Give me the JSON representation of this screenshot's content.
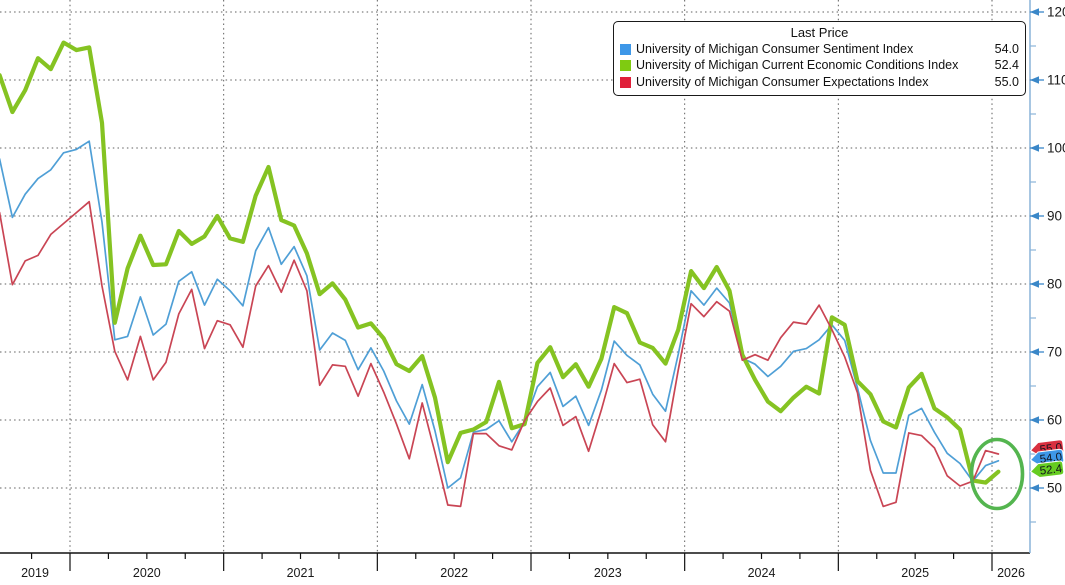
{
  "chart_data": {
    "type": "line",
    "title": "",
    "legend": {
      "title": "Last Price",
      "position": "top-right"
    },
    "x_axis": {
      "year_labels": [
        "2019",
        "2020",
        "2021",
        "2022",
        "2023",
        "2024",
        "2025",
        "2026"
      ],
      "start_month": "2019-07",
      "end_month": "2026-01",
      "minor_tick_interval_months": 3
    },
    "y_axis": {
      "side": "right",
      "ticks": [
        50,
        60,
        70,
        80,
        90,
        100,
        110,
        120
      ],
      "minor_ticks": [
        45,
        55,
        65,
        75,
        85,
        95,
        105,
        115
      ],
      "range": [
        40,
        122
      ]
    },
    "grid": "dotted",
    "months": [
      "2019-07",
      "2019-08",
      "2019-09",
      "2019-10",
      "2019-11",
      "2019-12",
      "2020-01",
      "2020-02",
      "2020-03",
      "2020-04",
      "2020-05",
      "2020-06",
      "2020-07",
      "2020-08",
      "2020-09",
      "2020-10",
      "2020-11",
      "2020-12",
      "2021-01",
      "2021-02",
      "2021-03",
      "2021-04",
      "2021-05",
      "2021-06",
      "2021-07",
      "2021-08",
      "2021-09",
      "2021-10",
      "2021-11",
      "2021-12",
      "2022-01",
      "2022-02",
      "2022-03",
      "2022-04",
      "2022-05",
      "2022-06",
      "2022-07",
      "2022-08",
      "2022-09",
      "2022-10",
      "2022-11",
      "2022-12",
      "2023-01",
      "2023-02",
      "2023-03",
      "2023-04",
      "2023-05",
      "2023-06",
      "2023-07",
      "2023-08",
      "2023-09",
      "2023-10",
      "2023-11",
      "2023-12",
      "2024-01",
      "2024-02",
      "2024-03",
      "2024-04",
      "2024-05",
      "2024-06",
      "2024-07",
      "2024-08",
      "2024-09",
      "2024-10",
      "2024-11",
      "2024-12",
      "2025-01",
      "2025-02",
      "2025-03",
      "2025-04",
      "2025-05",
      "2025-06",
      "2025-07",
      "2025-08",
      "2025-09",
      "2025-10",
      "2025-11",
      "2025-12",
      "2026-01"
    ],
    "series": [
      {
        "name": "University of Michigan Consumer Sentiment Index",
        "last_price": "54.0",
        "color": "#4f9fd6",
        "swatch_color": "#3d97e8",
        "badge_color": "#3e97e8",
        "line_width": 1.7,
        "values": [
          98.4,
          89.8,
          93.2,
          95.5,
          96.8,
          99.3,
          99.8,
          101.0,
          89.1,
          71.8,
          72.3,
          78.1,
          72.5,
          74.1,
          80.4,
          81.8,
          76.9,
          80.7,
          79.0,
          76.8,
          84.9,
          88.3,
          82.9,
          85.5,
          81.2,
          70.3,
          72.8,
          71.7,
          67.4,
          70.6,
          67.2,
          62.8,
          59.4,
          65.2,
          58.4,
          50.0,
          51.5,
          58.2,
          58.6,
          59.9,
          56.8,
          59.7,
          64.9,
          67.0,
          62.0,
          63.5,
          59.2,
          64.4,
          71.6,
          69.5,
          68.1,
          63.8,
          61.3,
          69.7,
          79.0,
          76.9,
          79.4,
          77.2,
          69.1,
          68.2,
          66.4,
          67.9,
          70.1,
          70.5,
          71.8,
          74.0,
          71.7,
          64.7,
          57.0,
          52.2,
          52.2,
          60.7,
          61.7,
          58.2,
          55.1,
          53.6,
          51.0,
          53.3,
          54.0
        ]
      },
      {
        "name": "University of Michigan Current Economic Conditions Index",
        "last_price": "52.4",
        "color": "#85c322",
        "swatch_color": "#7fcb11",
        "badge_color": "#66cc22",
        "line_width": 4.2,
        "values": [
          110.7,
          105.3,
          108.5,
          113.2,
          111.6,
          115.5,
          114.4,
          114.8,
          103.7,
          74.3,
          82.3,
          87.1,
          82.8,
          82.9,
          87.8,
          85.9,
          87.0,
          90.0,
          86.7,
          86.2,
          93.0,
          97.2,
          89.4,
          88.6,
          84.5,
          78.5,
          80.1,
          77.7,
          73.6,
          74.2,
          72.0,
          68.2,
          67.2,
          69.4,
          63.3,
          53.8,
          58.1,
          58.6,
          59.7,
          65.6,
          58.8,
          59.4,
          68.4,
          70.7,
          66.3,
          68.2,
          64.9,
          69.0,
          76.6,
          75.7,
          71.4,
          70.6,
          68.3,
          73.3,
          81.9,
          79.4,
          82.5,
          79.0,
          69.6,
          65.9,
          62.7,
          61.3,
          63.3,
          64.9,
          63.9,
          75.1,
          74.0,
          65.7,
          63.8,
          59.8,
          58.9,
          64.8,
          66.8,
          61.7,
          60.4,
          58.6,
          51.1,
          50.8,
          52.4
        ]
      },
      {
        "name": "University of Michigan Consumer Expectations Index",
        "last_price": "55.0",
        "color": "#c94554",
        "swatch_color": "#e0203a",
        "badge_color": "#d9303f",
        "line_width": 1.7,
        "values": [
          90.5,
          79.9,
          83.4,
          84.2,
          87.3,
          88.9,
          90.5,
          92.1,
          79.7,
          70.1,
          65.9,
          72.3,
          65.9,
          68.5,
          75.6,
          79.2,
          70.5,
          74.6,
          74.0,
          70.7,
          79.7,
          82.7,
          78.8,
          83.5,
          79.0,
          65.1,
          68.1,
          67.9,
          63.5,
          68.3,
          64.1,
          59.4,
          54.3,
          62.5,
          55.2,
          47.5,
          47.3,
          58.0,
          58.0,
          56.2,
          55.6,
          59.9,
          62.7,
          64.7,
          59.2,
          60.5,
          55.4,
          61.5,
          68.3,
          65.5,
          66.0,
          59.3,
          56.8,
          67.4,
          77.1,
          75.2,
          77.4,
          76.0,
          68.8,
          69.6,
          68.8,
          72.1,
          74.4,
          74.1,
          76.9,
          73.3,
          69.3,
          64.0,
          52.6,
          47.3,
          47.9,
          58.1,
          57.7,
          55.9,
          51.8,
          50.3,
          51.0,
          55.5,
          55.0
        ]
      }
    ],
    "annotation": {
      "shape": "ellipse-highlight",
      "color": "#54b54f",
      "highlights": "latest readings near lows"
    }
  }
}
